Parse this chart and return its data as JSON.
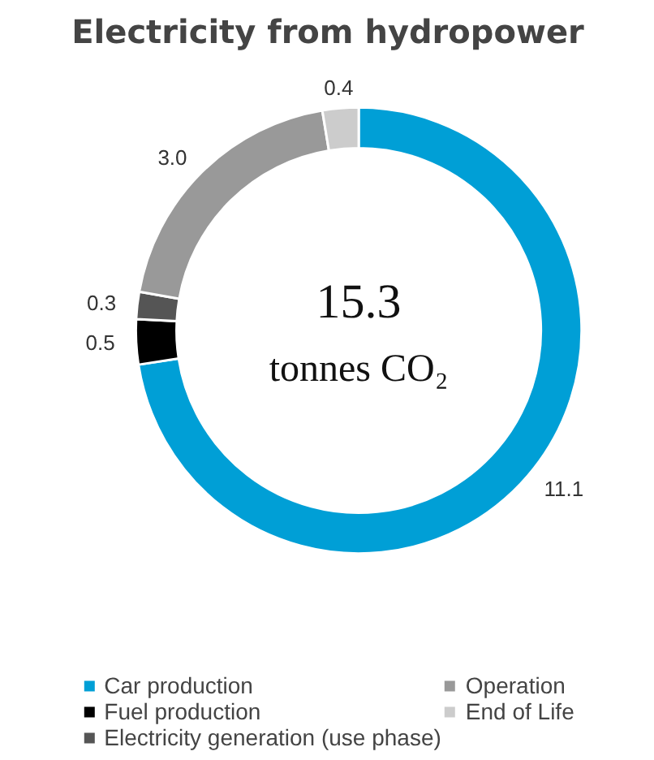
{
  "chart_data": {
    "type": "donut",
    "title": "Electricity from hydropower",
    "categories": [
      "Car production",
      "Fuel production",
      "Electricity generation (use phase)",
      "Operation",
      "End of Life"
    ],
    "values": [
      11.1,
      0.5,
      0.3,
      3.0,
      0.4
    ],
    "colors": [
      "#009fd6",
      "#000000",
      "#555555",
      "#999999",
      "#cccccc"
    ],
    "value_labels": [
      "11.1",
      "0.5",
      "0.3",
      "3.0",
      "0.4"
    ],
    "annotations": [
      "15.3",
      "tonnes CO₂"
    ],
    "legend": "bottom"
  }
}
